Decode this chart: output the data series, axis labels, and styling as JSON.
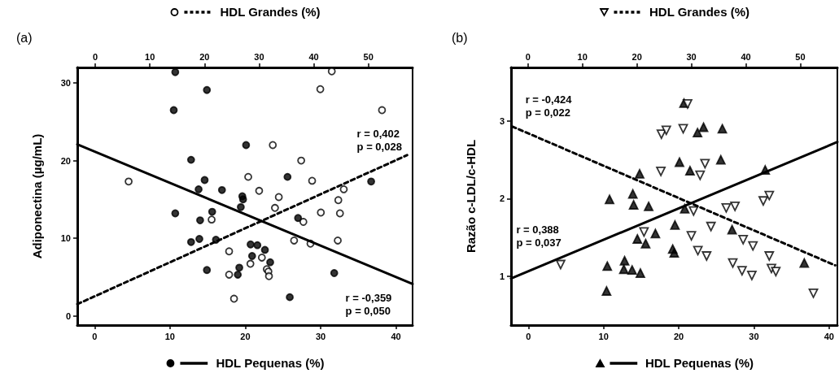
{
  "chart_data": [
    {
      "type": "scatter",
      "title": "(a)",
      "ylabel": "Adiponectina (µg/mL)",
      "xlabel": "HDL Pequenas (%)",
      "x2label": "HDL Grandes (%)",
      "xlim": [
        -2.3,
        42.2
      ],
      "xticks": [
        0,
        10,
        20,
        30,
        40
      ],
      "x2lim": [
        -3.3,
        58.1
      ],
      "x2ticks": [
        0,
        10,
        20,
        30,
        40,
        50
      ],
      "ylim": [
        -1.2,
        32
      ],
      "yticks": [
        0,
        10,
        20,
        30
      ],
      "grid": false,
      "annotations": [
        "r = 0,402\np = 0,028",
        "r = -0,359\np = 0,050"
      ],
      "series": [
        {
          "marker": "circle",
          "color": "#000000",
          "x": [
            10.7,
            14.9,
            10.5,
            20.1,
            12.8,
            25.6,
            14.6,
            13.8,
            16.9,
            19.6,
            19.7,
            19.4,
            10.7,
            15.6,
            14.0,
            36.7,
            27.0,
            12.8,
            13.9,
            16.1,
            20.7,
            21.6,
            22.6,
            20.9,
            23.3,
            14.9,
            19.2,
            19.0,
            31.8,
            25.9
          ],
          "values": [
            31.4,
            29.1,
            26.5,
            22.0,
            20.1,
            17.9,
            17.5,
            16.3,
            16.2,
            15.4,
            15.0,
            14.0,
            13.2,
            13.4,
            12.3,
            17.3,
            12.6,
            9.5,
            9.9,
            9.8,
            9.2,
            9.1,
            8.5,
            7.7,
            6.9,
            5.9,
            6.2,
            5.3,
            5.5,
            2.4
          ]
        },
        {
          "marker": "circle-open",
          "axis": "x2",
          "color": "#000000",
          "x": [
            43.3,
            41.2,
            52.5,
            32.5,
            37.7,
            28.0,
            39.7,
            6.1,
            30.0,
            45.5,
            33.6,
            44.5,
            32.9,
            41.3,
            44.8,
            21.3,
            38.1,
            36.4,
            39.4,
            44.4,
            24.5,
            30.5,
            28.4,
            31.4,
            31.7,
            31.8,
            24.5,
            25.4
          ],
          "values": [
            31.5,
            29.2,
            26.5,
            22.0,
            20.0,
            17.9,
            17.4,
            17.3,
            16.1,
            16.3,
            15.3,
            14.9,
            13.9,
            13.3,
            13.2,
            12.4,
            12.1,
            9.7,
            9.3,
            9.7,
            8.3,
            7.5,
            6.7,
            6.0,
            5.7,
            5.1,
            5.3,
            2.2
          ]
        },
        {
          "type": "line",
          "line_style": "solid",
          "color": "#000000",
          "x": [
            -2.3,
            42.2
          ],
          "values": [
            22.1,
            4.1
          ]
        },
        {
          "type": "line",
          "line_style": "dashed",
          "axis": "x2",
          "color": "#000000",
          "x": [
            -3.3,
            57.1
          ],
          "values": [
            1.5,
            20.7
          ]
        }
      ]
    },
    {
      "type": "scatter",
      "title": "(b)",
      "ylabel": "Razão c-LDL/c-HDL",
      "xlabel": "HDL Pequenas (%)",
      "x2label": "HDL Grandes (%)",
      "xlim": [
        -2.3,
        41.1
      ],
      "xticks": [
        0,
        10,
        20,
        30,
        40
      ],
      "x2lim": [
        -3.1,
        56.8
      ],
      "x2ticks": [
        0,
        10,
        20,
        30,
        40,
        50
      ],
      "ylim": [
        0.37,
        3.69
      ],
      "yticks": [
        1,
        2,
        3
      ],
      "grid": false,
      "annotations": [
        "r = -0,424\np = 0,022",
        "r = 0,388\np = 0,037"
      ],
      "series": [
        {
          "marker": "triangle",
          "color": "#000000",
          "x": [
            20.7,
            23.3,
            22.5,
            25.8,
            20.1,
            25.6,
            21.5,
            14.8,
            13.9,
            10.8,
            14.0,
            16.0,
            20.8,
            19.5,
            16.9,
            14.5,
            15.6,
            27.1,
            19.2,
            19.4,
            12.8,
            10.5,
            12.7,
            13.8,
            14.9,
            10.4,
            36.7,
            31.5
          ],
          "values": [
            3.23,
            2.92,
            2.85,
            2.9,
            2.47,
            2.5,
            2.36,
            2.32,
            2.06,
            1.99,
            1.92,
            1.9,
            1.87,
            1.66,
            1.55,
            1.48,
            1.42,
            1.6,
            1.35,
            1.3,
            1.2,
            1.13,
            1.09,
            1.08,
            1.04,
            0.81,
            1.17,
            2.37
          ]
        },
        {
          "marker": "triangle-down-open",
          "axis": "x2",
          "color": "#000000",
          "x": [
            29.3,
            24.5,
            25.4,
            28.5,
            32.5,
            24.4,
            31.6,
            30.4,
            36.4,
            38.0,
            43.2,
            44.3,
            21.3,
            30.0,
            33.6,
            39.5,
            41.3,
            31.2,
            32.8,
            37.6,
            39.3,
            41.1,
            44.3,
            44.7,
            45.5,
            52.4,
            6.0
          ],
          "values": [
            3.22,
            2.83,
            2.88,
            2.9,
            2.45,
            2.35,
            2.3,
            1.84,
            1.88,
            1.9,
            1.97,
            2.04,
            1.57,
            1.52,
            1.64,
            1.47,
            1.39,
            1.33,
            1.26,
            1.17,
            1.07,
            1.01,
            1.26,
            1.1,
            1.06,
            0.78,
            1.15
          ]
        },
        {
          "type": "line",
          "line_style": "solid",
          "color": "#000000",
          "x": [
            -2.3,
            41.1
          ],
          "values": [
            0.97,
            2.73
          ]
        },
        {
          "type": "line",
          "line_style": "dashed",
          "axis": "x2",
          "color": "#000000",
          "x": [
            -2.9,
            56.4
          ],
          "values": [
            2.93,
            1.14
          ]
        }
      ]
    }
  ]
}
